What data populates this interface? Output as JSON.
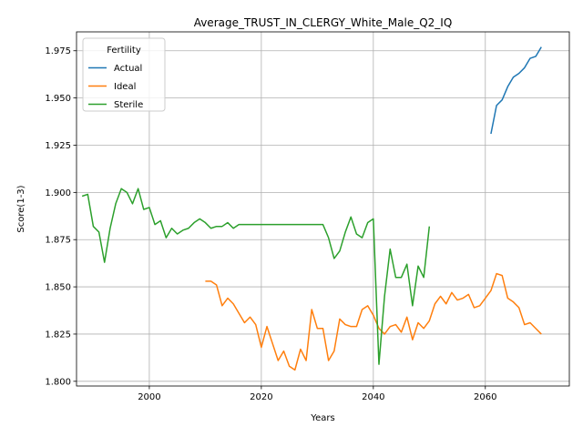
{
  "chart_data": {
    "type": "line",
    "title": "Average_TRUST_IN_CLERGY_White_Male_Q2_IQ",
    "xlabel": "Years",
    "ylabel": "Score(1-3)",
    "xlim": [
      1987,
      2075
    ],
    "ylim": [
      1.7975,
      1.985
    ],
    "xticks": [
      2000,
      2020,
      2040,
      2060
    ],
    "yticks": [
      1.8,
      1.825,
      1.85,
      1.875,
      1.9,
      1.925,
      1.95,
      1.975
    ],
    "grid": true,
    "legend": {
      "title": "Fertility",
      "placement": "top-left"
    },
    "series": [
      {
        "name": "Actual",
        "color": "#1f77b4",
        "x": [
          2061,
          2062,
          2063,
          2064,
          2065,
          2066,
          2067,
          2068,
          2069,
          2070
        ],
        "y": [
          1.931,
          1.946,
          1.949,
          1.956,
          1.961,
          1.963,
          1.966,
          1.971,
          1.972,
          1.977
        ]
      },
      {
        "name": "Ideal",
        "color": "#ff7f0e",
        "x": [
          2010,
          2011,
          2012,
          2013,
          2014,
          2015,
          2016,
          2017,
          2018,
          2019,
          2020,
          2021,
          2022,
          2023,
          2024,
          2025,
          2026,
          2027,
          2028,
          2029,
          2030,
          2031,
          2032,
          2033,
          2034,
          2035,
          2036,
          2037,
          2038,
          2039,
          2040,
          2041,
          2042,
          2043,
          2044,
          2045,
          2046,
          2047,
          2048,
          2049,
          2050,
          2051,
          2052,
          2053,
          2054,
          2055,
          2056,
          2057,
          2058,
          2059,
          2060,
          2061,
          2062,
          2063,
          2064,
          2065,
          2066,
          2067,
          2068,
          2069,
          2070
        ],
        "y": [
          1.853,
          1.853,
          1.851,
          1.84,
          1.844,
          1.841,
          1.836,
          1.831,
          1.834,
          1.83,
          1.818,
          1.829,
          1.82,
          1.811,
          1.816,
          1.808,
          1.806,
          1.817,
          1.811,
          1.838,
          1.828,
          1.828,
          1.811,
          1.816,
          1.833,
          1.83,
          1.829,
          1.829,
          1.838,
          1.84,
          1.835,
          1.828,
          1.825,
          1.829,
          1.83,
          1.826,
          1.834,
          1.822,
          1.831,
          1.828,
          1.832,
          1.841,
          1.845,
          1.841,
          1.847,
          1.843,
          1.844,
          1.846,
          1.839,
          1.84,
          1.844,
          1.848,
          1.857,
          1.856,
          1.844,
          1.842,
          1.839,
          1.83,
          1.831,
          1.828,
          1.825
        ]
      },
      {
        "name": "Sterile",
        "color": "#2ca02c",
        "x": [
          1988,
          1989,
          1990,
          1991,
          1992,
          1993,
          1994,
          1995,
          1996,
          1997,
          1998,
          1999,
          2000,
          2001,
          2002,
          2003,
          2004,
          2005,
          2006,
          2007,
          2008,
          2009,
          2010,
          2011,
          2012,
          2013,
          2014,
          2015,
          2016,
          2017,
          2018,
          2019,
          2020,
          2021,
          2022,
          2023,
          2024,
          2025,
          2026,
          2027,
          2028,
          2029,
          2030,
          2031,
          2032,
          2033,
          2034,
          2035,
          2036,
          2037,
          2038,
          2039,
          2040,
          2041,
          2042,
          2043,
          2044,
          2045,
          2046,
          2047,
          2048,
          2049,
          2050
        ],
        "y": [
          1.898,
          1.899,
          1.882,
          1.879,
          1.863,
          1.881,
          1.894,
          1.902,
          1.9,
          1.894,
          1.902,
          1.891,
          1.892,
          1.883,
          1.885,
          1.876,
          1.881,
          1.878,
          1.88,
          1.881,
          1.884,
          1.886,
          1.884,
          1.881,
          1.882,
          1.882,
          1.884,
          1.881,
          1.883,
          1.883,
          1.883,
          1.883,
          1.883,
          1.883,
          1.883,
          1.883,
          1.883,
          1.883,
          1.883,
          1.883,
          1.883,
          1.883,
          1.883,
          1.883,
          1.876,
          1.865,
          1.869,
          1.879,
          1.887,
          1.878,
          1.876,
          1.884,
          1.886,
          1.809,
          1.845,
          1.87,
          1.855,
          1.855,
          1.862,
          1.84,
          1.861,
          1.855,
          1.882
        ]
      }
    ]
  }
}
